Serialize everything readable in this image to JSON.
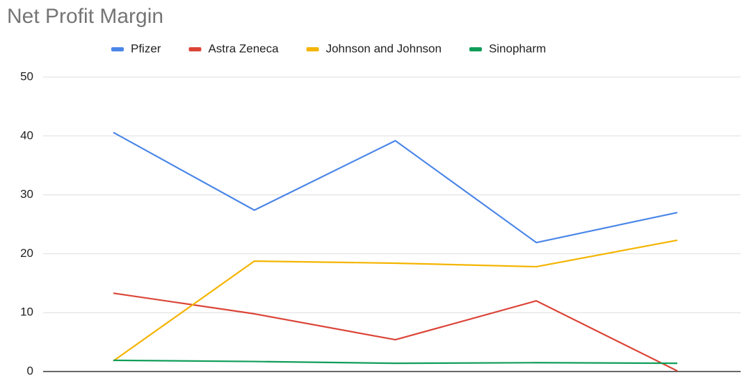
{
  "chart_data": {
    "type": "line",
    "title": "Net Profit Margin",
    "categories": [
      null,
      null,
      null,
      null,
      null
    ],
    "series": [
      {
        "name": "Pfizer",
        "color": "#4a86e8",
        "values": [
          40.6,
          27.4,
          39.2,
          21.9,
          27.0
        ]
      },
      {
        "name": "Astra Zeneca",
        "color": "#db4437",
        "values": [
          13.3,
          9.8,
          5.4,
          12.0,
          0.1
        ]
      },
      {
        "name": "Johnson and Johnson",
        "color": "#f4b400",
        "values": [
          1.8,
          18.75,
          18.4,
          17.8,
          22.3
        ]
      },
      {
        "name": "Sinopharm",
        "color": "#0f9d58",
        "values": [
          1.9,
          1.7,
          1.4,
          1.5,
          1.4
        ]
      }
    ],
    "ylim": [
      0,
      50
    ],
    "yticks": [
      0,
      10,
      20,
      30,
      40,
      50
    ],
    "grid": true,
    "legend": "top"
  }
}
